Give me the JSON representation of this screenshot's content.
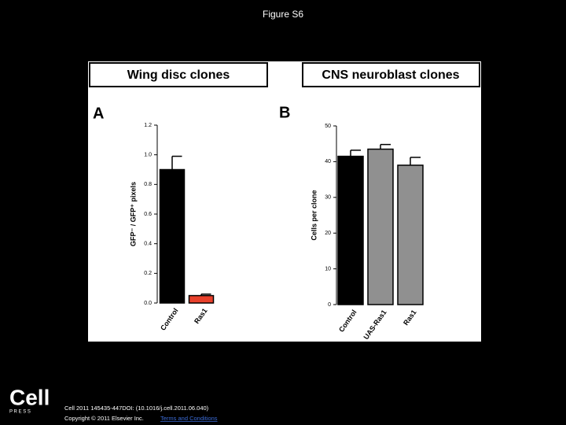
{
  "title": "Figure S6",
  "chart_data": [
    {
      "type": "bar",
      "header": "Wing disc clones",
      "panel": "A",
      "y_label": "GFP⁻ / GFP⁺ pixels",
      "categories": [
        "Control",
        "Ras1"
      ],
      "values": [
        0.9,
        0.05
      ],
      "errors": [
        0.09,
        0.01
      ],
      "colors": [
        "#000000",
        "#e8412c"
      ],
      "ylim": [
        0,
        1.2
      ],
      "yticks": [
        {
          "value": 0,
          "label": "0.0"
        },
        0.2,
        0.4,
        0.6,
        0.8,
        {
          "value": 1,
          "label": "1.0"
        },
        1.2
      ]
    },
    {
      "type": "bar",
      "header": "CNS neuroblast clones",
      "panel": "B",
      "y_label": "Cells per clone",
      "categories": [
        "Control",
        "UAS-Ras1",
        "Ras1"
      ],
      "values": [
        41.5,
        43.5,
        39
      ],
      "errors": [
        1.7,
        1.3,
        2.2
      ],
      "colors": [
        "#000000",
        "#909090",
        "#909090"
      ],
      "ylim": [
        0,
        50
      ],
      "yticks": [
        0,
        10,
        20,
        30,
        40,
        50
      ]
    }
  ],
  "footer": {
    "logo": "Cell",
    "logo_sub": "P R E S S",
    "citation": "Cell 2011 145435-447DOI: (10.1016/j.cell.2011.06.040)",
    "copyright": "Copyright © 2011 Elsevier Inc.",
    "link": "Terms and Conditions"
  }
}
